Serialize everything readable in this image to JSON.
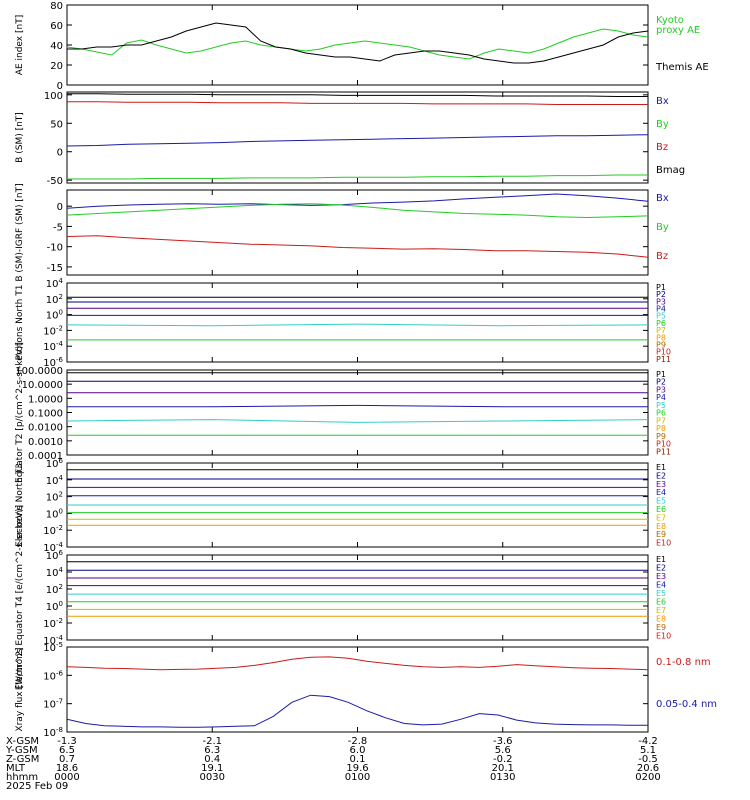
{
  "colors": {
    "black": "#000000",
    "green": "#22cc22",
    "blue": "#1a1aaa",
    "red": "#cc1a1a",
    "navy": "#000080",
    "purple": "#550088",
    "cyan": "#33cccc",
    "teal": "#00aa88",
    "yellow": "#ccbb00",
    "orange": "#ee9900",
    "brown": "#882200"
  },
  "chart_data": [
    {
      "type": "line",
      "id": "ae",
      "ylabel": "AE index [nT]",
      "ylim": [
        0,
        80
      ],
      "yticks": [
        "0",
        "20",
        "40",
        "60",
        "80"
      ],
      "series": [
        {
          "name": "Kyoto proxy AE",
          "color": "#22cc22",
          "values": [
            38,
            36,
            33,
            30,
            42,
            45,
            40,
            36,
            32,
            34,
            38,
            42,
            44,
            40,
            38,
            36,
            34,
            36,
            40,
            42,
            44,
            42,
            40,
            38,
            34,
            30,
            28,
            26,
            32,
            36,
            34,
            32,
            36,
            42,
            48,
            52,
            56,
            54,
            50,
            48
          ]
        },
        {
          "name": "Themis AE",
          "color": "#000000",
          "values": [
            36,
            36,
            38,
            38,
            40,
            40,
            44,
            48,
            54,
            58,
            62,
            60,
            58,
            44,
            38,
            36,
            32,
            30,
            28,
            28,
            26,
            24,
            30,
            32,
            34,
            34,
            32,
            30,
            26,
            24,
            22,
            22,
            24,
            28,
            32,
            36,
            40,
            48,
            52,
            54
          ]
        }
      ]
    },
    {
      "type": "line",
      "id": "bsm",
      "ylabel": "B (SM) [nT]",
      "ylim": [
        -55,
        105
      ],
      "yticks": [
        "-50",
        "0",
        "50",
        "100"
      ],
      "series": [
        {
          "name": "Bx",
          "color": "#1a1aaa",
          "values": [
            10,
            11,
            13,
            14,
            15,
            16,
            18,
            19,
            20,
            21,
            22,
            23,
            24,
            25,
            26,
            27,
            28,
            28,
            29,
            30
          ]
        },
        {
          "name": "By",
          "color": "#22cc22",
          "values": [
            -48,
            -48,
            -48,
            -47,
            -47,
            -47,
            -46,
            -46,
            -46,
            -45,
            -45,
            -45,
            -44,
            -44,
            -43,
            -43,
            -42,
            -42,
            -41,
            -41
          ]
        },
        {
          "name": "Bz",
          "color": "#cc1a1a",
          "values": [
            88,
            88,
            87,
            87,
            87,
            86,
            86,
            86,
            85,
            85,
            85,
            85,
            84,
            84,
            84,
            84,
            83,
            83,
            83,
            83
          ]
        },
        {
          "name": "Bmag",
          "color": "#000000",
          "values": [
            102,
            102,
            101,
            101,
            101,
            100,
            100,
            100,
            100,
            99,
            99,
            99,
            99,
            99,
            98,
            98,
            98,
            98,
            97,
            97
          ]
        }
      ]
    },
    {
      "type": "line",
      "id": "bdiff",
      "ylabel": "B (SM)-IGRF (SM) [nT]",
      "ylim": [
        -17,
        4
      ],
      "yticks": [
        "-15",
        "-10",
        "-5",
        "0"
      ],
      "series": [
        {
          "name": "Bx",
          "color": "#1a1aaa",
          "values": [
            -0.5,
            0,
            0.3,
            0.5,
            0.6,
            0.5,
            0.6,
            0.4,
            0.2,
            0.4,
            0.8,
            1.0,
            1.3,
            1.8,
            2.2,
            2.6,
            3.0,
            2.6,
            2.0,
            1.2
          ]
        },
        {
          "name": "By",
          "color": "#22cc22",
          "values": [
            -2.2,
            -1.8,
            -1.4,
            -1.0,
            -0.6,
            -0.2,
            0.2,
            0.5,
            0.6,
            0.3,
            -0.3,
            -1.0,
            -1.4,
            -1.8,
            -2.0,
            -2.2,
            -2.6,
            -2.8,
            -2.6,
            -2.4
          ]
        },
        {
          "name": "Bz",
          "color": "#cc1a1a",
          "values": [
            -7.5,
            -7.3,
            -7.8,
            -8.2,
            -8.6,
            -9.0,
            -9.4,
            -9.6,
            -9.8,
            -10.2,
            -10.4,
            -10.6,
            -10.5,
            -10.7,
            -11.0,
            -11.0,
            -11.2,
            -11.4,
            -11.8,
            -12.6
          ]
        }
      ]
    },
    {
      "type": "line",
      "id": "pnorth",
      "log": true,
      "ylabel": "Protons North T1",
      "ylim": [
        -6,
        4
      ],
      "yticks": [
        "10^4",
        "10^2",
        "10^0",
        "10^-2",
        "10^-4",
        "10^-6"
      ],
      "series": [
        {
          "name": "P1",
          "color": "#000000",
          "values": [
            2.2,
            2.2,
            2.2,
            2.2,
            2.2
          ]
        },
        {
          "name": "P2",
          "color": "#000080",
          "values": [
            1.6,
            1.6,
            1.6,
            1.6,
            1.6
          ]
        },
        {
          "name": "P3",
          "color": "#550088",
          "values": [
            0.8,
            0.8,
            0.8,
            0.8,
            0.8
          ]
        },
        {
          "name": "P4",
          "color": "#1a1aaa",
          "values": [
            -0.1,
            -0.1,
            -0.1,
            -0.1,
            -0.1
          ]
        },
        {
          "name": "P5",
          "color": "#33cccc",
          "values": [
            -1.3,
            -1.4,
            -1.2,
            -1.4,
            -1.3
          ]
        },
        {
          "name": "P6",
          "color": "#22cc22",
          "values": [
            -3.2,
            -3.2,
            -3.2,
            -3.2,
            -3.2
          ]
        }
      ]
    },
    {
      "type": "line",
      "id": "pequator",
      "log": true,
      "ylabel": "Equator T2 [p/(cm^2-s-sr-keV)]",
      "ylim": [
        -4,
        2
      ],
      "yticks": [
        "100.0000",
        "10.0000",
        "1.0000",
        "0.1000",
        "0.0100",
        "0.0010",
        "0.0001"
      ],
      "series": [
        {
          "name": "P1",
          "color": "#000000",
          "values": [
            1.8,
            1.8,
            1.8,
            1.8,
            1.8
          ]
        },
        {
          "name": "P2",
          "color": "#000080",
          "values": [
            1.2,
            1.2,
            1.2,
            1.2,
            1.2
          ]
        },
        {
          "name": "P3",
          "color": "#550088",
          "values": [
            0.4,
            0.4,
            0.4,
            0.4,
            0.4
          ]
        },
        {
          "name": "P4",
          "color": "#1a1aaa",
          "values": [
            -0.6,
            -0.6,
            -0.5,
            -0.6,
            -0.6
          ]
        },
        {
          "name": "P5",
          "color": "#33cccc",
          "values": [
            -1.6,
            -1.5,
            -1.7,
            -1.6,
            -1.5
          ]
        },
        {
          "name": "P6",
          "color": "#22cc22",
          "values": [
            -2.6,
            -2.6,
            -2.6,
            -2.6,
            -2.6
          ]
        }
      ]
    },
    {
      "type": "line",
      "id": "enorth",
      "log": true,
      "ylabel": "Electrons North T3",
      "ylim": [
        -4,
        6
      ],
      "yticks": [
        "10^6",
        "10^4",
        "10^2",
        "10^0",
        "10^-2",
        "10^-4"
      ],
      "series": [
        {
          "name": "E1",
          "color": "#000000",
          "values": [
            5.2,
            5.2,
            5.2,
            5.2,
            5.2
          ]
        },
        {
          "name": "E2",
          "color": "#000080",
          "values": [
            4.1,
            4.1,
            4.1,
            4.1,
            4.1
          ]
        },
        {
          "name": "E3",
          "color": "#550088",
          "values": [
            3.1,
            3.1,
            3.1,
            3.1,
            3.1
          ]
        },
        {
          "name": "E4",
          "color": "#1a1aaa",
          "values": [
            2.1,
            2.1,
            2.1,
            2.1,
            2.1
          ]
        },
        {
          "name": "E5",
          "color": "#33cccc",
          "values": [
            1.0,
            1.0,
            1.0,
            1.0,
            1.0
          ]
        },
        {
          "name": "E6",
          "color": "#22cc22",
          "values": [
            0.1,
            0.1,
            0.1,
            0.1,
            0.1
          ]
        },
        {
          "name": "E7",
          "color": "#ccbb00",
          "values": [
            -0.7,
            -0.7,
            -0.7,
            -0.7,
            -0.7
          ]
        },
        {
          "name": "E8",
          "color": "#ee9900",
          "values": [
            -1.4,
            -1.4,
            -1.4,
            -1.4,
            -1.4
          ]
        }
      ]
    },
    {
      "type": "line",
      "id": "eequator",
      "log": true,
      "ylabel": "Electrons Equator T4 [e/(cm^2-s-sr-keV)]",
      "ylim": [
        -4,
        6
      ],
      "yticks": [
        "10^6",
        "10^4",
        "10^2",
        "10^0",
        "10^-2",
        "10^-4"
      ],
      "series": [
        {
          "name": "E1",
          "color": "#000000",
          "values": [
            5.2,
            5.2,
            5.2,
            5.2,
            5.2
          ]
        },
        {
          "name": "E2",
          "color": "#000080",
          "values": [
            4.2,
            4.2,
            4.2,
            4.2,
            4.2
          ]
        },
        {
          "name": "E3",
          "color": "#550088",
          "values": [
            3.3,
            3.3,
            3.3,
            3.3,
            3.3
          ]
        },
        {
          "name": "E4",
          "color": "#1a1aaa",
          "values": [
            2.4,
            2.4,
            2.4,
            2.4,
            2.4
          ]
        },
        {
          "name": "E5",
          "color": "#33cccc",
          "values": [
            1.4,
            1.4,
            1.4,
            1.4,
            1.4
          ]
        },
        {
          "name": "E6",
          "color": "#22cc22",
          "values": [
            0.5,
            0.5,
            0.5,
            0.5,
            0.5
          ]
        },
        {
          "name": "E7",
          "color": "#ccbb00",
          "values": [
            -0.4,
            -0.4,
            -0.4,
            -0.4,
            -0.4
          ]
        },
        {
          "name": "E8",
          "color": "#ee9900",
          "values": [
            -1.2,
            -1.2,
            -1.2,
            -1.2,
            -1.2
          ]
        }
      ]
    },
    {
      "type": "line",
      "id": "xray",
      "log": true,
      "ylabel": "Xray flux [W/m^2]",
      "ylim": [
        -8,
        -5
      ],
      "yticks": [
        "10^-5",
        "10^-6",
        "10^-7",
        "10^-8"
      ],
      "series": [
        {
          "name": "0.1-0.8 nm",
          "color": "#cc1a1a",
          "values": [
            -5.7,
            -5.72,
            -5.75,
            -5.76,
            -5.78,
            -5.8,
            -5.79,
            -5.78,
            -5.75,
            -5.72,
            -5.65,
            -5.55,
            -5.43,
            -5.36,
            -5.35,
            -5.4,
            -5.5,
            -5.58,
            -5.65,
            -5.7,
            -5.72,
            -5.7,
            -5.72,
            -5.68,
            -5.62,
            -5.66,
            -5.7,
            -5.73,
            -5.75,
            -5.76,
            -5.78,
            -5.8
          ]
        },
        {
          "name": "0.05-0.4 nm",
          "color": "#1a1aaa",
          "values": [
            -7.55,
            -7.7,
            -7.78,
            -7.8,
            -7.82,
            -7.82,
            -7.83,
            -7.83,
            -7.82,
            -7.8,
            -7.78,
            -7.45,
            -6.95,
            -6.7,
            -6.75,
            -6.95,
            -7.25,
            -7.5,
            -7.7,
            -7.75,
            -7.72,
            -7.55,
            -7.35,
            -7.4,
            -7.58,
            -7.68,
            -7.72,
            -7.74,
            -7.75,
            -7.75,
            -7.76,
            -7.76
          ]
        }
      ]
    }
  ],
  "footer": {
    "row_labels": [
      "X-GSM",
      "Y-GSM",
      "Z-GSM",
      "MLT",
      "hhmm",
      "2025 Feb 09"
    ],
    "columns": [
      {
        "x_gsm": "-1.3",
        "y_gsm": "6.5",
        "z_gsm": "0.7",
        "mlt": "18.6",
        "hhmm": "0000"
      },
      {
        "x_gsm": "-2.1",
        "y_gsm": "6.3",
        "z_gsm": "0.4",
        "mlt": "19.1",
        "hhmm": "0030"
      },
      {
        "x_gsm": "-2.8",
        "y_gsm": "6.0",
        "z_gsm": "0.1",
        "mlt": "19.6",
        "hhmm": "0100"
      },
      {
        "x_gsm": "-3.6",
        "y_gsm": "5.6",
        "z_gsm": "-0.2",
        "mlt": "20.1",
        "hhmm": "0130"
      },
      {
        "x_gsm": "-4.2",
        "y_gsm": "5.1",
        "z_gsm": "-0.5",
        "mlt": "20.6",
        "hhmm": "0200"
      }
    ]
  },
  "legends": {
    "ae": [
      {
        "text": "Kyoto",
        "color": "#22cc22"
      },
      {
        "text": "proxy AE",
        "color": "#22cc22"
      },
      {
        "text": "Themis AE",
        "color": "#000000"
      }
    ],
    "bsm": [
      {
        "text": "Bx",
        "color": "#1a1aaa"
      },
      {
        "text": "By",
        "color": "#22cc22"
      },
      {
        "text": "Bz",
        "color": "#cc1a1a"
      },
      {
        "text": "Bmag",
        "color": "#000000"
      }
    ],
    "bdiff": [
      {
        "text": "Bx",
        "color": "#1a1aaa"
      },
      {
        "text": "By",
        "color": "#22cc22"
      },
      {
        "text": "Bz",
        "color": "#cc1a1a"
      }
    ],
    "pnorth": [
      "P1",
      "P2",
      "P3",
      "P4",
      "P5",
      "P6",
      "P7",
      "P8",
      "P9",
      "P10",
      "P11"
    ],
    "pequator": [
      "P1",
      "P2",
      "P3",
      "P4",
      "P5",
      "P6",
      "P7",
      "P8",
      "P9",
      "P10",
      "P11"
    ],
    "enorth": [
      "E1",
      "E2",
      "E3",
      "E4",
      "E5",
      "E6",
      "E7",
      "E8",
      "E9",
      "E10"
    ],
    "eequator": [
      "E1",
      "E2",
      "E3",
      "E4",
      "E5",
      "E6",
      "E7",
      "E8",
      "E9",
      "E10"
    ],
    "xray": [
      {
        "text": "0.1-0.8 nm",
        "color": "#cc1a1a"
      },
      {
        "text": "0.05-0.4 nm",
        "color": "#1a1aaa"
      }
    ],
    "list_colors": [
      "#000000",
      "#000080",
      "#550088",
      "#1a1aaa",
      "#33cccc",
      "#22cc22",
      "#ccbb00",
      "#ee9900",
      "#aa6600",
      "#cc1a1a",
      "#882200"
    ]
  }
}
